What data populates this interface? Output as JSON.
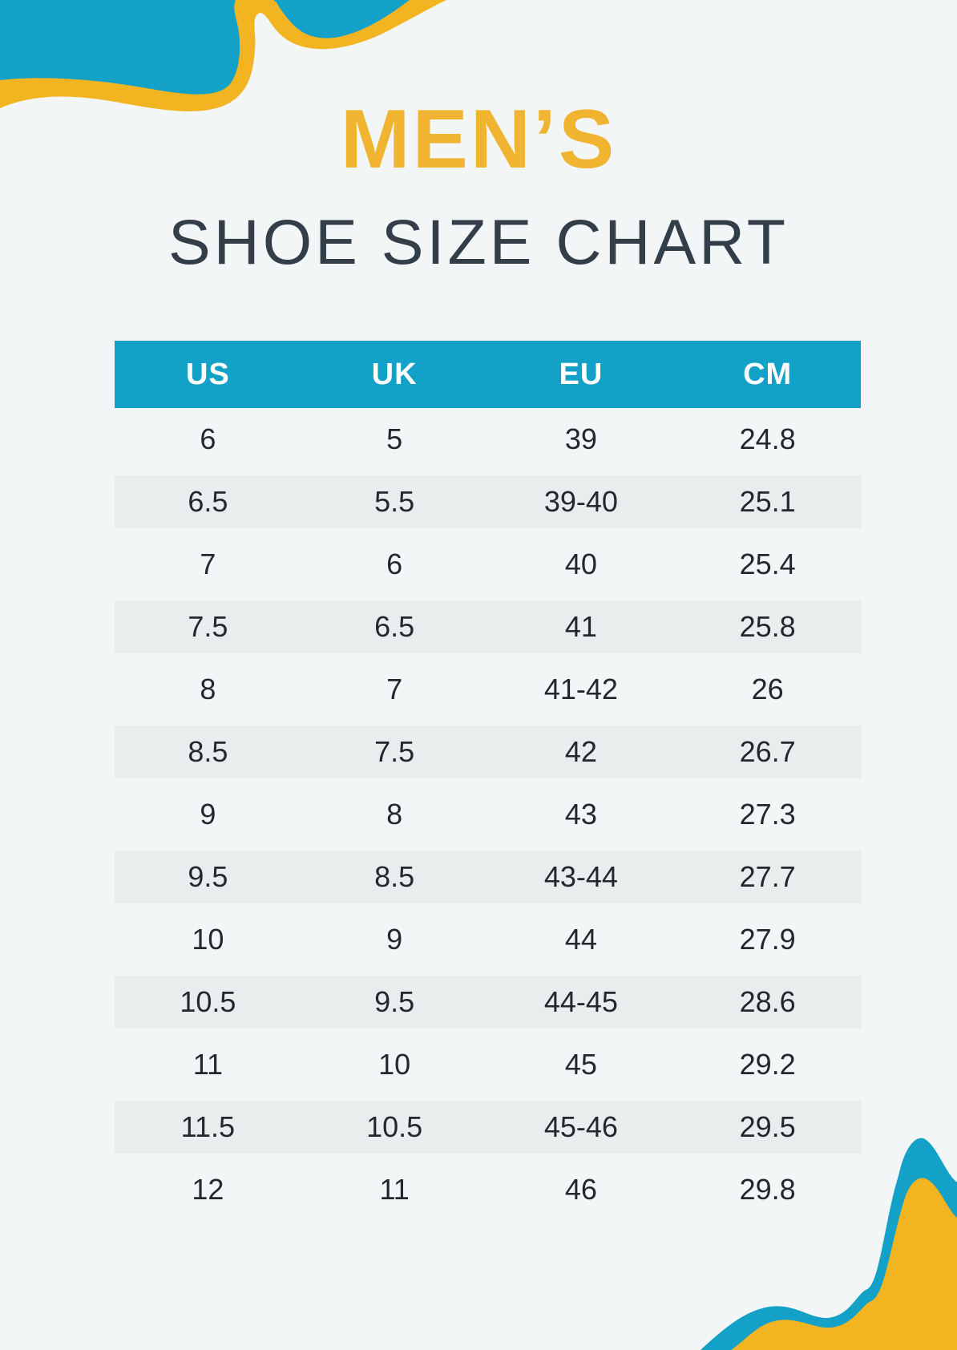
{
  "title": {
    "line1": "MEN’S",
    "line2": "SHOE SIZE CHART"
  },
  "table": {
    "columns": [
      "US",
      "UK",
      "EU",
      "CM"
    ],
    "rows": [
      [
        "6",
        "5",
        "39",
        "24.8"
      ],
      [
        "6.5",
        "5.5",
        "39-40",
        "25.1"
      ],
      [
        "7",
        "6",
        "40",
        "25.4"
      ],
      [
        "7.5",
        "6.5",
        "41",
        "25.8"
      ],
      [
        "8",
        "7",
        "41-42",
        "26"
      ],
      [
        "8.5",
        "7.5",
        "42",
        "26.7"
      ],
      [
        "9",
        "8",
        "43",
        "27.3"
      ],
      [
        "9.5",
        "8.5",
        "43-44",
        "27.7"
      ],
      [
        "10",
        "9",
        "44",
        "27.9"
      ],
      [
        "10.5",
        "9.5",
        "44-45",
        "28.6"
      ],
      [
        "11",
        "10",
        "45",
        "29.2"
      ],
      [
        "11.5",
        "10.5",
        "45-46",
        "29.5"
      ],
      [
        "12",
        "11",
        "46",
        "29.8"
      ]
    ]
  },
  "colors": {
    "page_bg": "#f3f6f6",
    "brand_blue": "#14a1c7",
    "brand_yellow": "#f3b422",
    "title_yellow": "#f0b431",
    "heading_dark": "#333e48",
    "cell_text": "#22282e",
    "header_text": "#ffffff",
    "stripe": "#e9eded"
  },
  "decorations": {
    "top_left": "blue-yellow-wave",
    "bottom_right": "blue-yellow-wave"
  }
}
